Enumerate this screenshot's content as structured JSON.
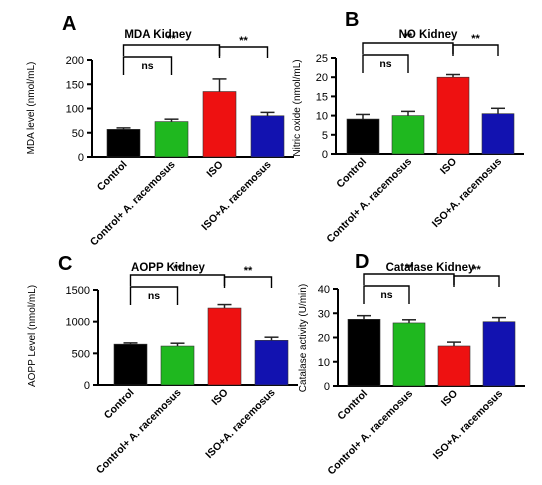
{
  "colors": {
    "control": "#000000",
    "control_ar": "#1fb81f",
    "iso": "#ee1111",
    "iso_ar": "#1212b0",
    "axis": "#000000"
  },
  "chart_data": [
    {
      "type": "bar",
      "panel_letter": "A",
      "title": "MDA Kidney",
      "ylabel": "MDA level (nmol/mL)",
      "xlabel": "",
      "categories": [
        "Control",
        "Control+ A. racemosus",
        "ISO",
        "ISO+A. racemosus"
      ],
      "values": [
        57,
        73,
        135,
        85
      ],
      "errors": [
        3,
        5,
        26,
        7
      ],
      "ylim": [
        0,
        200
      ],
      "yticks": [
        0,
        50,
        100,
        150,
        200
      ],
      "grid": false,
      "significance": [
        {
          "label": "**",
          "from": 0,
          "to": 2
        },
        {
          "label": "ns",
          "from": 0,
          "to": 1
        },
        {
          "label": "**",
          "from": 2,
          "to": 3
        }
      ]
    },
    {
      "type": "bar",
      "panel_letter": "B",
      "title": "NO Kidney",
      "ylabel": "Nitric oxide (nmol/mL)",
      "xlabel": "",
      "categories": [
        "Control",
        "Control+ A. racemosus",
        "ISO",
        "ISO+A. racemosus"
      ],
      "values": [
        9.1,
        10.0,
        20.0,
        10.5
      ],
      "errors": [
        1.2,
        1.1,
        0.7,
        1.4
      ],
      "ylim": [
        0,
        25
      ],
      "yticks": [
        0,
        5,
        10,
        15,
        20,
        25
      ],
      "grid": false,
      "significance": [
        {
          "label": "**",
          "from": 0,
          "to": 2
        },
        {
          "label": "ns",
          "from": 0,
          "to": 1
        },
        {
          "label": "**",
          "from": 2,
          "to": 3
        }
      ]
    },
    {
      "type": "bar",
      "panel_letter": "C",
      "title": "AOPP Kidney",
      "ylabel": "AOPP Level (nmol/mL)",
      "xlabel": "",
      "categories": [
        "Control",
        "Control+ A. racemosus",
        "ISO",
        "ISO+A. racemosus"
      ],
      "values": [
        645,
        615,
        1215,
        705
      ],
      "errors": [
        20,
        45,
        55,
        50
      ],
      "ylim": [
        0,
        1500
      ],
      "yticks": [
        0,
        500,
        1000,
        1500
      ],
      "grid": false,
      "significance": [
        {
          "label": "**",
          "from": 0,
          "to": 2
        },
        {
          "label": "ns",
          "from": 0,
          "to": 1
        },
        {
          "label": "**",
          "from": 2,
          "to": 3
        }
      ]
    },
    {
      "type": "bar",
      "panel_letter": "D",
      "title": "Catalase Kidney",
      "ylabel": "Catalase activity (U/min)",
      "xlabel": "",
      "categories": [
        "Control",
        "Control+ A. racemosus",
        "ISO",
        "ISO+A. racemosus"
      ],
      "values": [
        27.5,
        26.0,
        16.5,
        26.5
      ],
      "errors": [
        1.5,
        1.3,
        1.6,
        1.7
      ],
      "ylim": [
        0,
        40
      ],
      "yticks": [
        0,
        10,
        20,
        30,
        40
      ],
      "grid": false,
      "significance": [
        {
          "label": "**",
          "from": 0,
          "to": 2
        },
        {
          "label": "ns",
          "from": 0,
          "to": 1
        },
        {
          "label": "**",
          "from": 2,
          "to": 3
        }
      ]
    }
  ]
}
